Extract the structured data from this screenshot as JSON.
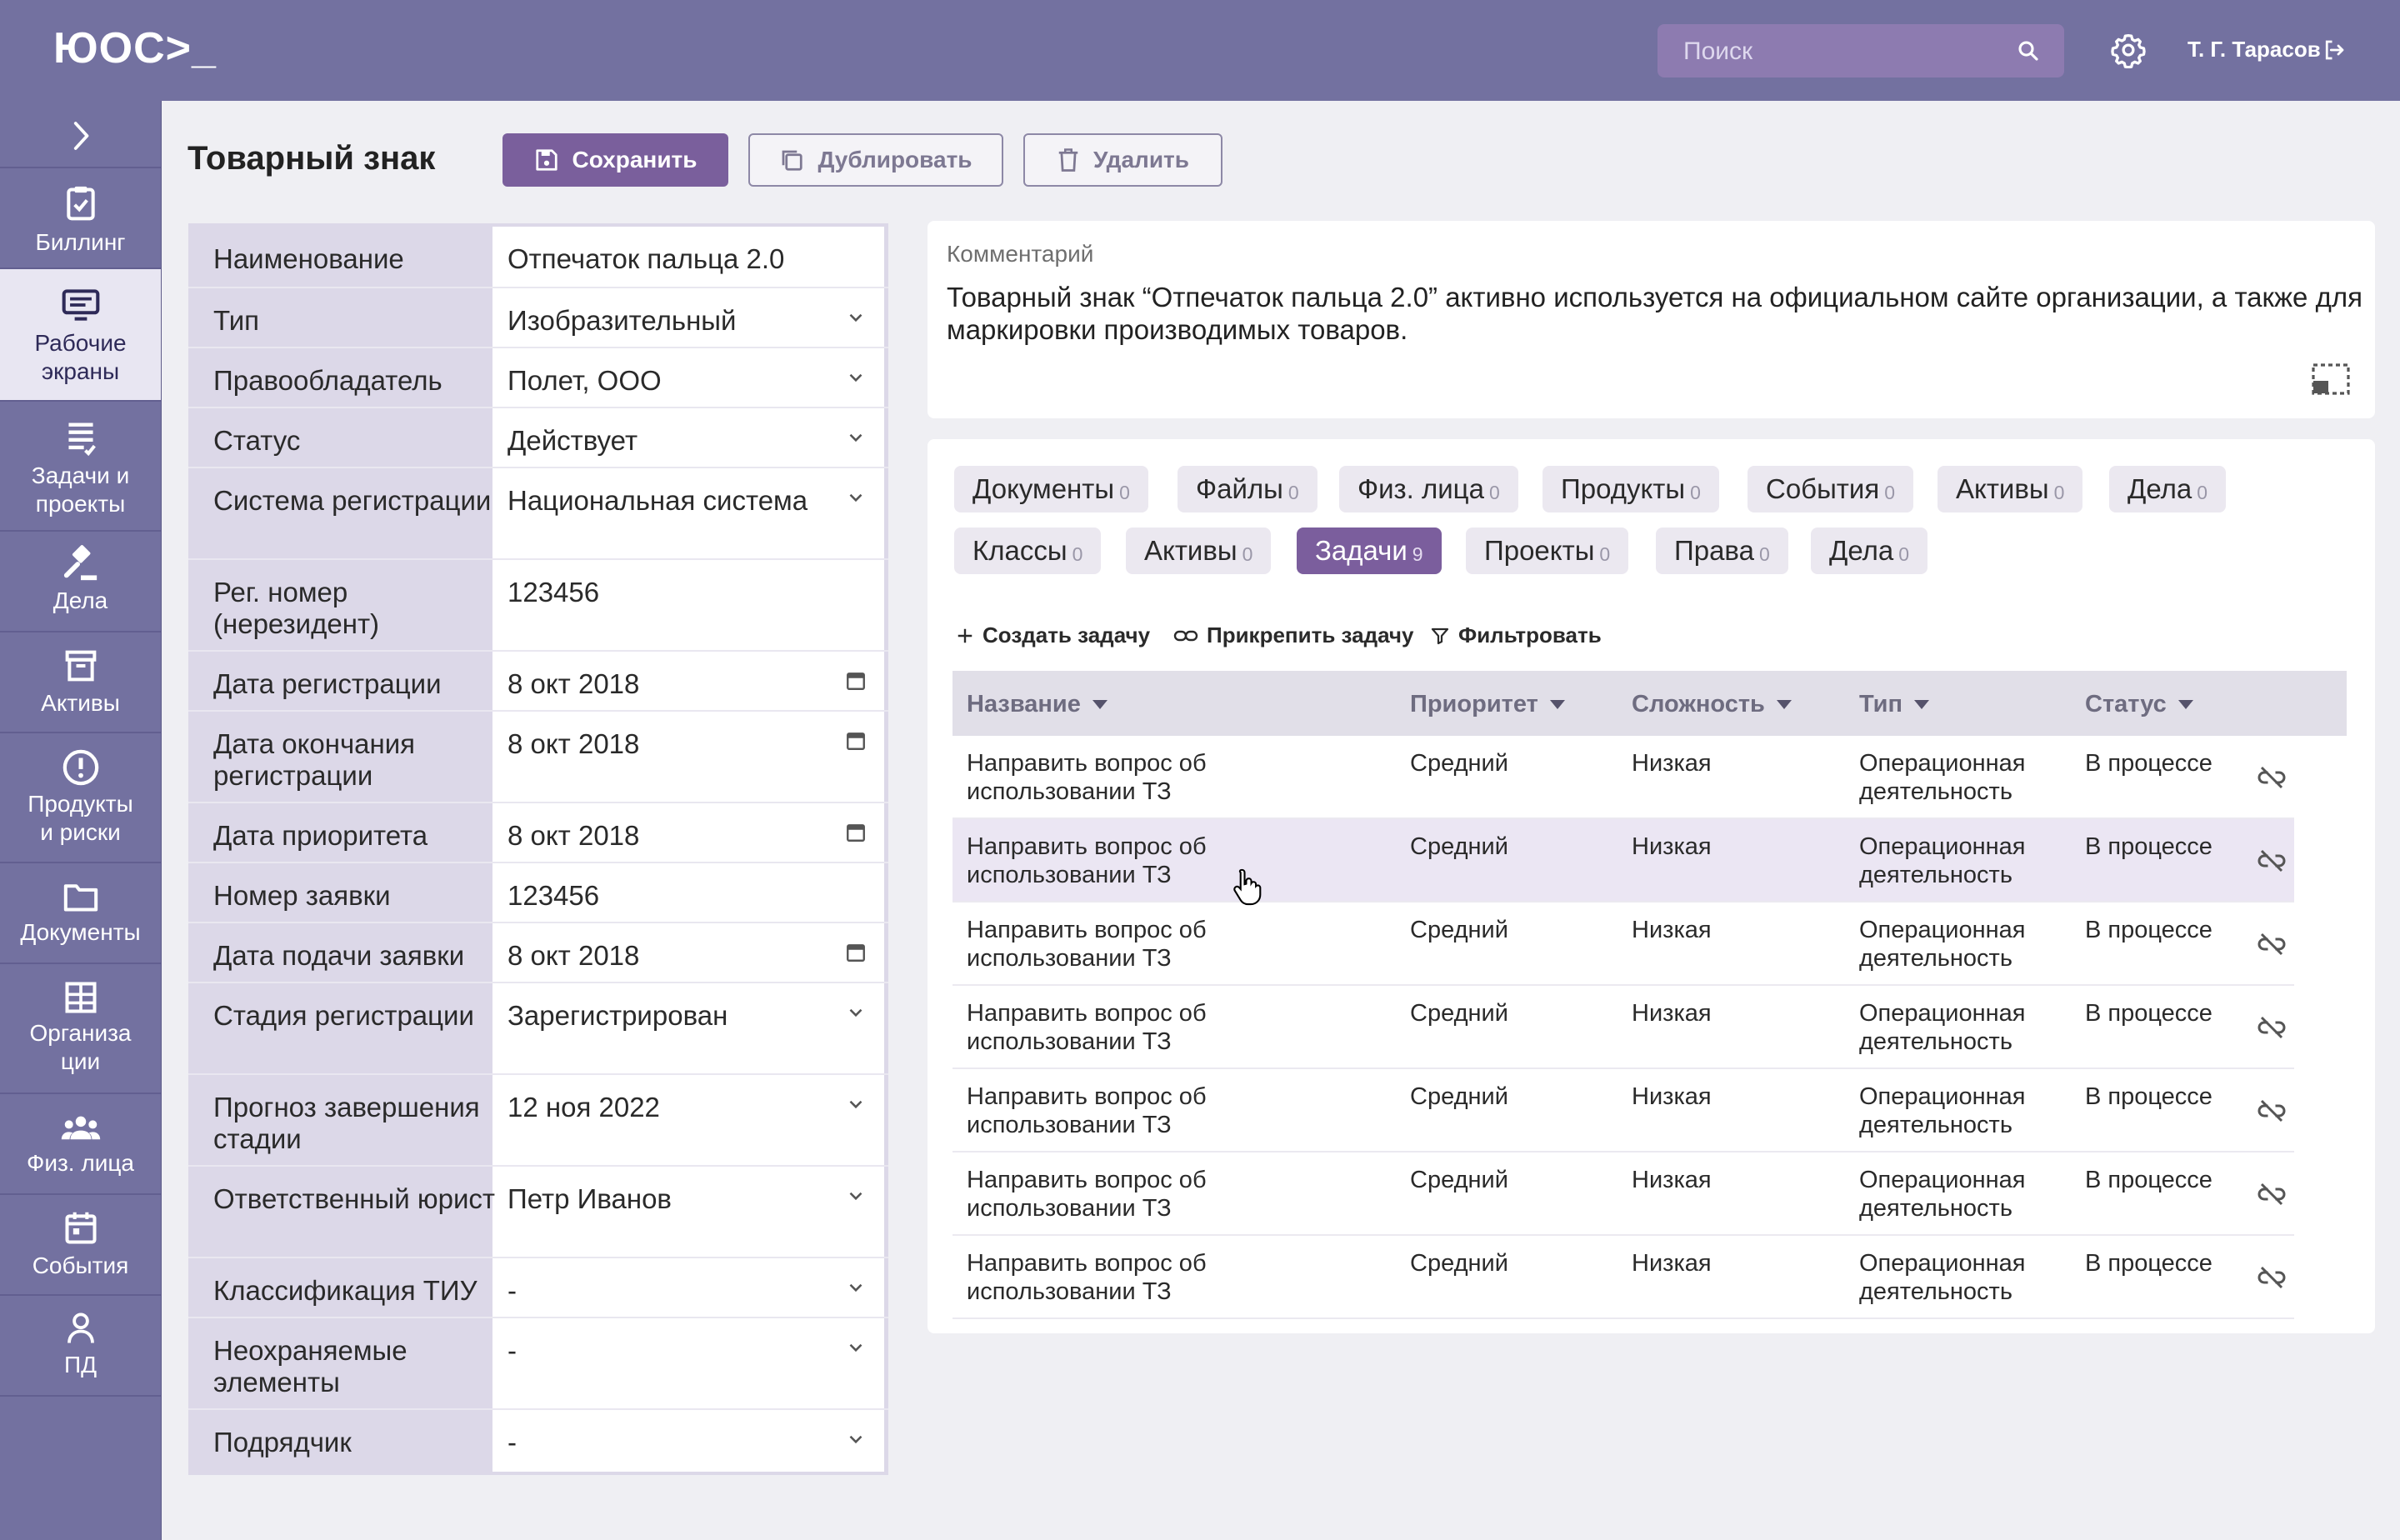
{
  "header": {
    "logo": "ЮОС>_",
    "search_placeholder": "Поиск",
    "user_name": "Т. Г. Тарасов"
  },
  "sidebar": {
    "items": [
      {
        "label": "",
        "icon": "chevron-right-icon"
      },
      {
        "label": "Биллинг",
        "icon": "clipboard-check-icon"
      },
      {
        "label": "Рабочие экраны",
        "icon": "monitor-list-icon",
        "active": true
      },
      {
        "label": "Задачи и проекты",
        "icon": "task-list-icon"
      },
      {
        "label": "Дела",
        "icon": "gavel-icon"
      },
      {
        "label": "Активы",
        "icon": "archive-box-icon"
      },
      {
        "label": "Продукты и риски",
        "icon": "alert-circle-icon"
      },
      {
        "label": "Документы",
        "icon": "folder-icon"
      },
      {
        "label": "Организа ции",
        "icon": "building-icon"
      },
      {
        "label": "Физ. лица",
        "icon": "people-icon"
      },
      {
        "label": "События",
        "icon": "calendar-icon"
      },
      {
        "label": "ПД",
        "icon": "person-icon"
      }
    ]
  },
  "page": {
    "title": "Товарный знак",
    "buttons": {
      "save": "Сохранить",
      "duplicate": "Дублировать",
      "delete": "Удалить"
    }
  },
  "form": {
    "rows": [
      {
        "label": "Наименование",
        "value": "Отпечаток пальца 2.0",
        "control": "text"
      },
      {
        "label": "Тип",
        "value": "Изобразительный",
        "control": "select"
      },
      {
        "label": "Правообладатель",
        "value": "Полет, ООО",
        "control": "select"
      },
      {
        "label": "Статус",
        "value": "Действует",
        "control": "select"
      },
      {
        "label": "Система регистрации",
        "value": "Национальная система",
        "control": "select"
      },
      {
        "label": "Рег. номер (нерезидент)",
        "value": "123456",
        "control": "text"
      },
      {
        "label": "Дата регистрации",
        "value": "8 окт 2018",
        "control": "date"
      },
      {
        "label": "Дата окончания регистрации",
        "value": "8 окт 2018",
        "control": "date"
      },
      {
        "label": "Дата приоритета",
        "value": "8 окт 2018",
        "control": "date"
      },
      {
        "label": "Номер заявки",
        "value": "123456",
        "control": "text"
      },
      {
        "label": "Дата подачи заявки",
        "value": "8 окт 2018",
        "control": "date"
      },
      {
        "label": "Стадия регистрации",
        "value": "Зарегистрирован",
        "control": "select"
      },
      {
        "label": "Прогноз завершения стадии",
        "value": "12 ноя 2022",
        "control": "select"
      },
      {
        "label": "Ответственный юрист",
        "value": "Петр Иванов",
        "control": "select"
      },
      {
        "label": "Классификация ТИУ",
        "value": "-",
        "control": "select"
      },
      {
        "label": "Неохраняемые элементы",
        "value": "-",
        "control": "select"
      },
      {
        "label": "Подрядчик",
        "value": "-",
        "control": "select"
      }
    ]
  },
  "comment": {
    "label": "Комментарий",
    "text": "Товарный знак “Отпечаток пальца 2.0” активно используется на официальном сайте организации, а также для маркировки производимых товаров."
  },
  "tabs": {
    "row1": [
      {
        "label": "Документы",
        "count": "0"
      },
      {
        "label": "Файлы",
        "count": "0"
      },
      {
        "label": "Физ. лица",
        "count": "0"
      },
      {
        "label": "Продукты",
        "count": "0"
      },
      {
        "label": "События",
        "count": "0"
      },
      {
        "label": "Активы",
        "count": "0"
      },
      {
        "label": "Дела",
        "count": "0"
      }
    ],
    "row2": [
      {
        "label": "Классы",
        "count": "0"
      },
      {
        "label": "Активы",
        "count": "0"
      },
      {
        "label": "Задачи",
        "count": "9",
        "active": true
      },
      {
        "label": "Проекты",
        "count": "0"
      },
      {
        "label": "Права",
        "count": "0"
      },
      {
        "label": "Дела",
        "count": "0"
      }
    ]
  },
  "actions": {
    "create": "Создать задачу",
    "attach": "Прикрепить задачу",
    "filter": "Фильтровать"
  },
  "table": {
    "columns": [
      "Название",
      "Приоритет",
      "Сложность",
      "Тип",
      "Статус"
    ],
    "rows": [
      {
        "name": "Направить вопрос об использовании ТЗ",
        "priority": "Средний",
        "complexity": "Низкая",
        "type": "Операционная деятельность",
        "status": "В процессе"
      },
      {
        "name": "Направить вопрос об использовании ТЗ",
        "priority": "Средний",
        "complexity": "Низкая",
        "type": "Операционная деятельность",
        "status": "В процессе",
        "highlighted": true
      },
      {
        "name": "Направить вопрос об использовании ТЗ",
        "priority": "Средний",
        "complexity": "Низкая",
        "type": "Операционная деятельность",
        "status": "В процессе"
      },
      {
        "name": "Направить вопрос об использовании ТЗ",
        "priority": "Средний",
        "complexity": "Низкая",
        "type": "Операционная деятельность",
        "status": "В процессе"
      },
      {
        "name": "Направить вопрос об использовании ТЗ",
        "priority": "Средний",
        "complexity": "Низкая",
        "type": "Операционная деятельность",
        "status": "В процессе"
      },
      {
        "name": "Направить вопрос об использовании ТЗ",
        "priority": "Средний",
        "complexity": "Низкая",
        "type": "Операционная деятельность",
        "status": "В процессе"
      },
      {
        "name": "Направить вопрос об использовании ТЗ",
        "priority": "Средний",
        "complexity": "Низкая",
        "type": "Операционная деятельность",
        "status": "В процессе"
      }
    ]
  },
  "colors": {
    "topbar": "#7371a0",
    "accent": "#7b5e9d",
    "sidebar_active": "#e8e6f2",
    "form_label_bg": "#dcd8e8"
  }
}
